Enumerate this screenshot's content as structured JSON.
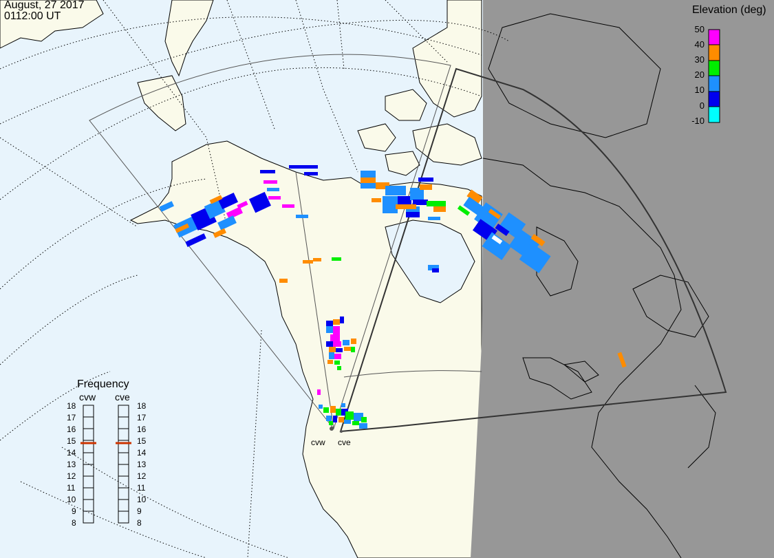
{
  "timestamp": {
    "date": "August, 27 2017",
    "time": "0112:00 UT"
  },
  "legend": {
    "title": "Elevation (deg)",
    "ticks": [
      "50",
      "40",
      "30",
      "20",
      "10",
      "0",
      "-10"
    ],
    "colors": [
      "#ff00ff",
      "#ff8c00",
      "#00ee00",
      "#1e90ff",
      "#0000ee",
      "#00ffff"
    ]
  },
  "frequency": {
    "title": "Frequency",
    "radars": [
      "cvw",
      "cve"
    ],
    "ticks": [
      "18",
      "17",
      "16",
      "15",
      "14",
      "13",
      "12",
      "11",
      "10",
      "9",
      "8"
    ],
    "cvw_value": 15,
    "cve_value": 15,
    "marker_color": "#cc3300"
  },
  "sites": {
    "west": "cvw",
    "east": "cve"
  },
  "colors": {
    "ocean": "#e8f4fc",
    "land": "#fafaea",
    "night": "#979797"
  }
}
